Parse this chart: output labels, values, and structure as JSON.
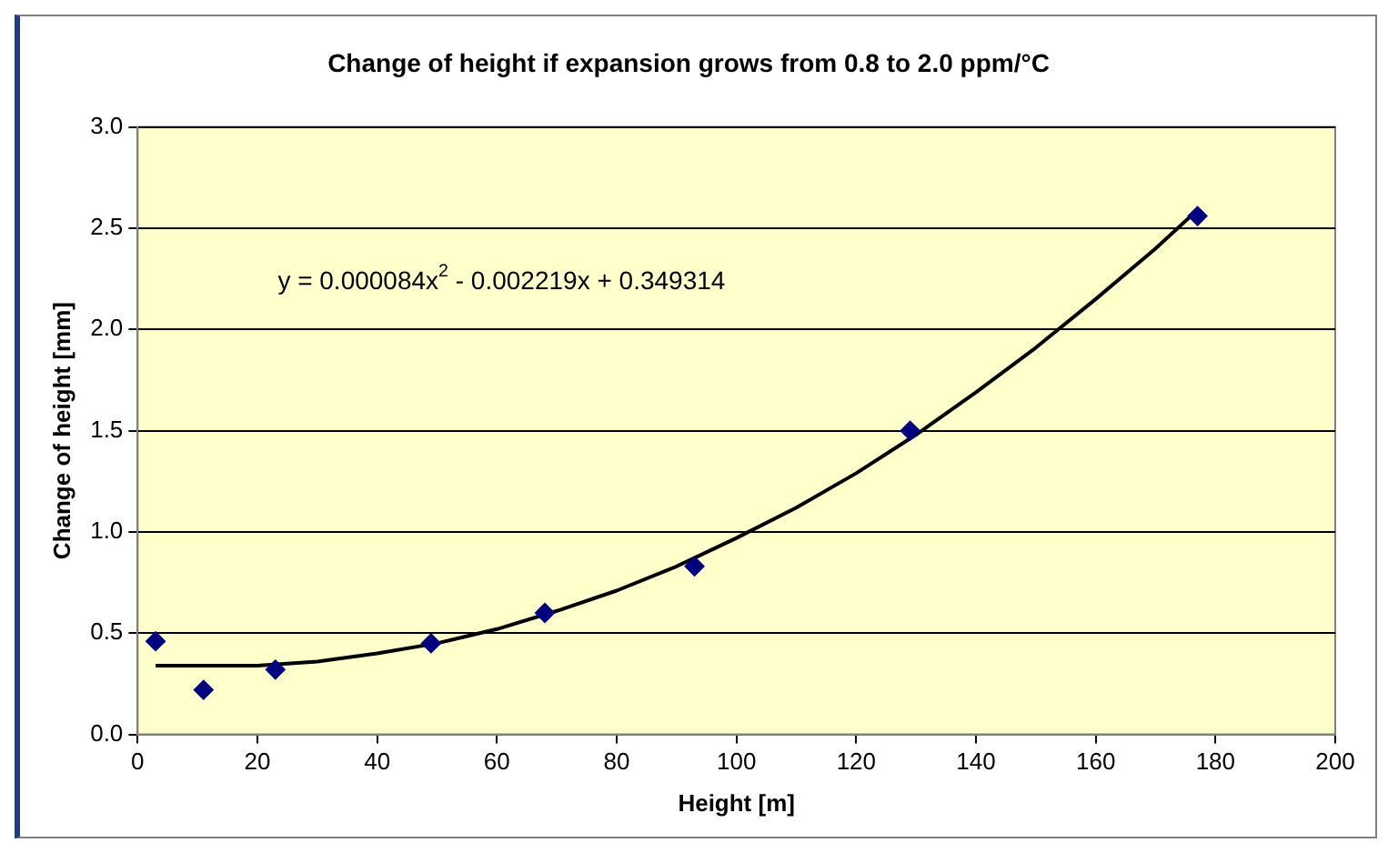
{
  "chart_data": {
    "type": "scatter",
    "title": "Change of height if expansion grows from 0.8 to 2.0 ppm/°C",
    "xlabel": "Height [m]",
    "ylabel": "Change of height [mm]",
    "series": [
      {
        "color": "#000080",
        "marker": "diamond",
        "x": [
          3,
          11,
          23,
          49,
          68,
          93,
          129,
          177
        ],
        "values": [
          0.46,
          0.22,
          0.32,
          0.45,
          0.6,
          0.83,
          1.5,
          2.56
        ]
      },
      {
        "type": "line",
        "color": "#000000",
        "marker": "none",
        "x": [
          3,
          10,
          20,
          30,
          40,
          50,
          60,
          70,
          80,
          90,
          100,
          110,
          120,
          130,
          140,
          150,
          160,
          170,
          177
        ],
        "values": [
          0.34,
          0.34,
          0.34,
          0.36,
          0.4,
          0.45,
          0.52,
          0.61,
          0.71,
          0.83,
          0.97,
          1.12,
          1.29,
          1.48,
          1.69,
          1.91,
          2.15,
          2.4,
          2.59
        ]
      }
    ],
    "xlim": [
      0,
      200
    ],
    "xticks": [
      0,
      20,
      40,
      60,
      80,
      100,
      120,
      140,
      160,
      180,
      200
    ],
    "ylim": [
      0,
      3
    ],
    "yticks": [
      {
        "value": 0,
        "label": "0.0"
      },
      0.5,
      {
        "value": 1,
        "label": "1.0"
      },
      1.5,
      {
        "value": 2,
        "label": "2.0"
      },
      2.5,
      {
        "value": 3,
        "label": "3.0"
      }
    ],
    "grid": "y",
    "legend": false,
    "annotations": [
      "y = 0.000084x$^{2}$ - 0.002219x + 0.349314"
    ]
  }
}
